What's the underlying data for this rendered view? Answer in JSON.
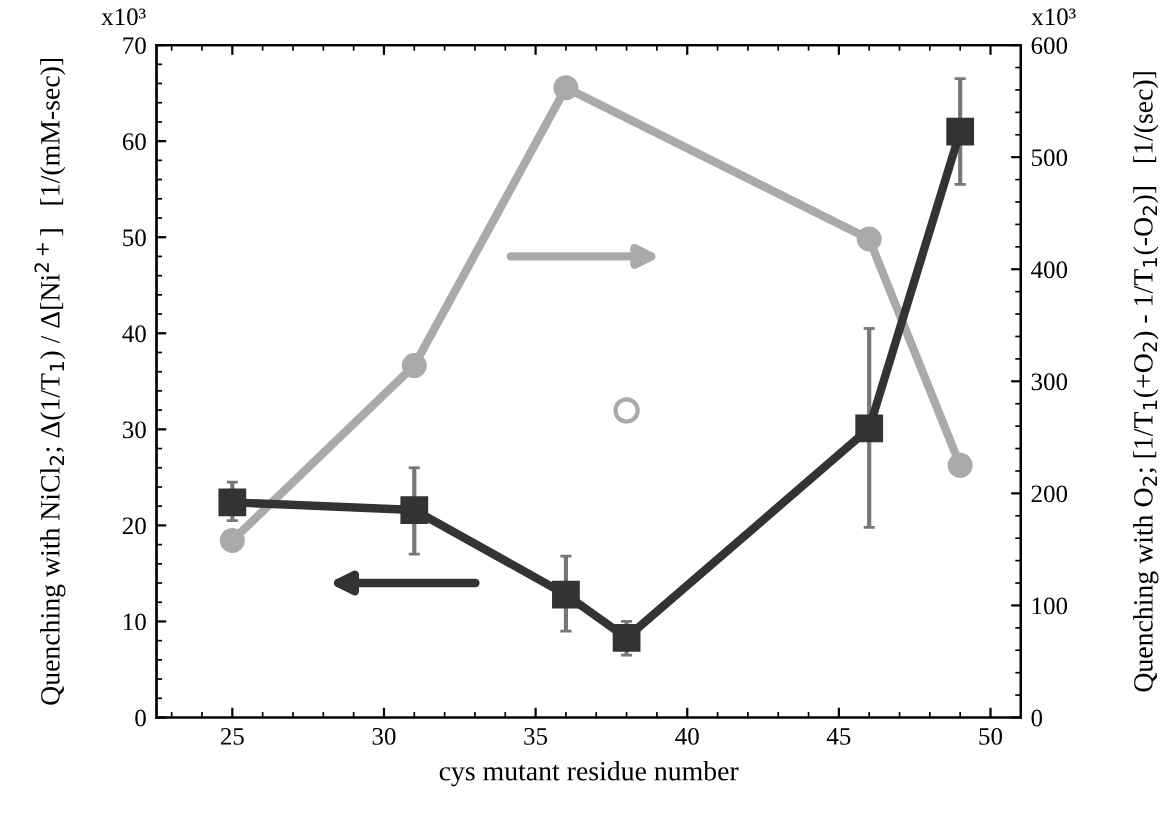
{
  "chart_data": {
    "type": "line",
    "xlabel": "cys mutant residue number",
    "ylabel": "Quenching with NiCl$_{2}$; Δ(1/T$_{1}$) / Δ[Ni$^{2+}$]   [1/(mM-sec)]",
    "y2label": "Quenching with O$_{2}$; [1/T$_{1}$(+O$_{2}$) - 1/T$_{1}$(-O$_{2}$)]   [1/(sec)]",
    "annotations": [
      "x10³",
      "x10³"
    ],
    "xlim": [
      22.5,
      51
    ],
    "xticks": [
      25,
      30,
      35,
      40,
      45,
      50
    ],
    "ylim": [
      0,
      70
    ],
    "yticks": [
      0,
      10,
      20,
      30,
      40,
      50,
      60,
      70
    ],
    "y2lim": [
      0,
      600
    ],
    "y2ticks": [
      0,
      100,
      200,
      300,
      400,
      500,
      600
    ],
    "grid": false,
    "legend": false,
    "line_style": "solid",
    "series": [
      {
        "axis": "y2",
        "color": "#aaaaaa",
        "marker": "circle",
        "x": [
          25,
          31,
          36,
          46,
          49
        ],
        "values": [
          158,
          314,
          562,
          427,
          225
        ]
      },
      {
        "axis": "y",
        "color": "#333333",
        "marker": "square",
        "x": [
          25,
          31,
          36,
          38,
          46,
          49
        ],
        "values": [
          22.4,
          21.6,
          12.8,
          8.3,
          30.1,
          61
        ],
        "errors": [
          [
            20.5,
            24.5
          ],
          [
            17,
            26
          ],
          [
            9,
            16.8
          ],
          [
            6.5,
            10
          ],
          [
            19.8,
            40.5
          ],
          [
            55.5,
            66.5
          ]
        ]
      },
      {
        "type": "scatter",
        "axis": "y2",
        "color": "#aaaaaa",
        "marker": "circle",
        "x": [
          38
        ],
        "values": [
          274
        ]
      }
    ]
  }
}
